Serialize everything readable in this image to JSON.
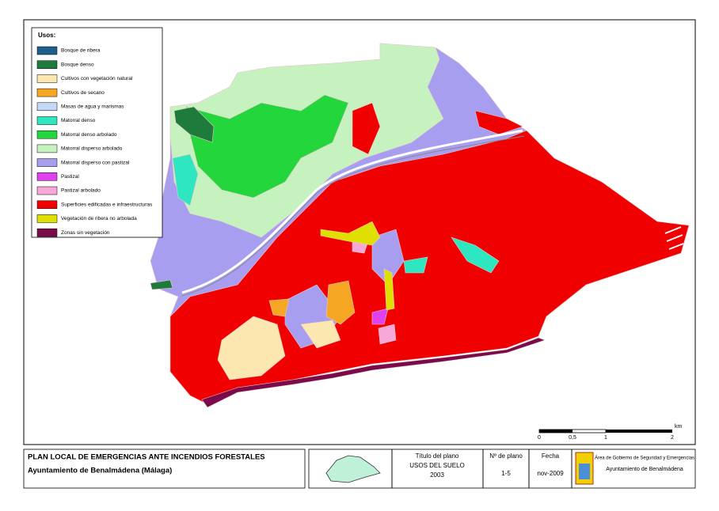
{
  "legend": {
    "title": "Usos:",
    "items": [
      {
        "label": "Bosque de ribera",
        "color": "#1f5f8b"
      },
      {
        "label": "Bosque denso",
        "color": "#1e7b3c"
      },
      {
        "label": "Cultivos con vegetación natural",
        "color": "#fde7b0"
      },
      {
        "label": "Cultivos de secano",
        "color": "#f5a623"
      },
      {
        "label": "Masas de agua y marismas",
        "color": "#c5d9f7"
      },
      {
        "label": "Matorral denso",
        "color": "#2ee6c0"
      },
      {
        "label": "Matorral denso arbolado",
        "color": "#22d63c"
      },
      {
        "label": "Matorral disperso arbolado",
        "color": "#c6f2c0"
      },
      {
        "label": "Matorral disperso con pastizal",
        "color": "#a89ef0"
      },
      {
        "label": "Pastizal",
        "color": "#e040f0"
      },
      {
        "label": "Pastizal arbolado",
        "color": "#f7a8d8"
      },
      {
        "label": "Superficies edificadas e infraestructuras",
        "color": "#f00000"
      },
      {
        "label": "Vegetación de ribera no arbolada",
        "color": "#e0e000"
      },
      {
        "label": "Zonas sin vegetación",
        "color": "#7a0a4a"
      }
    ]
  },
  "scale": {
    "unit": "km",
    "labels": [
      "0",
      "0,5",
      "1",
      "2"
    ]
  },
  "title_block": {
    "plan": "PLAN LOCAL DE EMERGENCIAS ANTE INCENDIOS FORESTALES",
    "municipality": "Ayuntamiento de Benalmádena (Málaga)",
    "plan_title_label": "Título del plano",
    "plan_title": "USOS DEL SUELO",
    "plan_year": "2003",
    "plan_number_label": "Nº de plano",
    "plan_number": "1-5",
    "date_label": "Fecha",
    "date": "nov-2009",
    "department": "Área de Gobierno de Seguridad y Emergencias",
    "council": "Ayuntamiento de Benalmádena"
  }
}
